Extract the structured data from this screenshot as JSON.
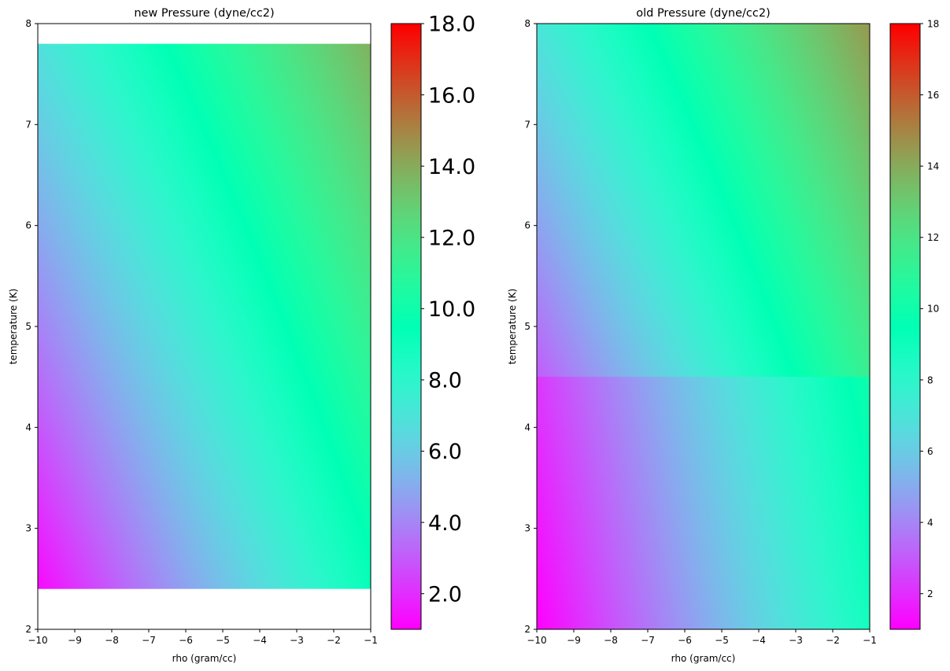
{
  "chart_data": [
    {
      "type": "heatmap",
      "title": "new Pressure (dyne/cc2)",
      "xlabel": "rho (gram/cc)",
      "ylabel": "temperature (K)",
      "xlim": [
        -10,
        -1
      ],
      "ylim": [
        2,
        8
      ],
      "x_ticks": [
        "−10",
        "−9",
        "−8",
        "−7",
        "−6",
        "−5",
        "−4",
        "−3",
        "−2",
        "−1"
      ],
      "y_ticks": [
        "2",
        "3",
        "4",
        "5",
        "6",
        "7",
        "8"
      ],
      "data_extent": {
        "x": [
          -10,
          -1
        ],
        "y": [
          2.4,
          7.8
        ]
      },
      "colormap": "rainbow",
      "colorbar": {
        "range": [
          1,
          18
        ],
        "ticks": [
          2,
          4,
          6,
          8,
          10,
          12,
          14,
          16,
          18
        ],
        "tick_labels": [
          "2.0",
          "4.0",
          "6.0",
          "8.0",
          "10.0",
          "12.0",
          "14.0",
          "16.0",
          "18.0"
        ]
      },
      "surface": [
        {
          "x": -10,
          "y": 2.4,
          "value": 1.2
        },
        {
          "x": -1,
          "y": 2.4,
          "value": 9.2
        },
        {
          "x": -10,
          "y": 7.8,
          "value": 6.8
        },
        {
          "x": -1,
          "y": 7.8,
          "value": 13.8
        }
      ]
    },
    {
      "type": "heatmap",
      "title": "old Pressure (dyne/cc2)",
      "xlabel": "rho (gram/cc)",
      "ylabel": "temperature (K)",
      "xlim": [
        -10,
        -1
      ],
      "ylim": [
        2,
        8
      ],
      "x_ticks": [
        "−10",
        "−9",
        "−8",
        "−7",
        "−6",
        "−5",
        "−4",
        "−3",
        "−2",
        "−1"
      ],
      "y_ticks": [
        "2",
        "3",
        "4",
        "5",
        "6",
        "7",
        "8"
      ],
      "data_extent": {
        "x": [
          -10,
          -1
        ],
        "y": [
          2,
          8
        ]
      },
      "discontinuity_at_y": 4.5,
      "colormap": "rainbow",
      "colorbar": {
        "range": [
          1,
          18
        ],
        "ticks": [
          2,
          4,
          6,
          8,
          10,
          12,
          14,
          16,
          18
        ],
        "tick_labels": [
          "2",
          "4",
          "6",
          "8",
          "10",
          "12",
          "14",
          "16",
          "18"
        ]
      },
      "surface_lower": [
        {
          "x": -10,
          "y": 2,
          "value": 1.0
        },
        {
          "x": -1,
          "y": 2,
          "value": 8.8
        },
        {
          "x": -10,
          "y": 4.5,
          "value": 2.2
        },
        {
          "x": -1,
          "y": 4.5,
          "value": 10.0
        }
      ],
      "surface_upper": [
        {
          "x": -10,
          "y": 4.5,
          "value": 3.0
        },
        {
          "x": -1,
          "y": 4.5,
          "value": 11.4
        },
        {
          "x": -10,
          "y": 8,
          "value": 7.0
        },
        {
          "x": -1,
          "y": 8,
          "value": 14.5
        }
      ]
    }
  ]
}
